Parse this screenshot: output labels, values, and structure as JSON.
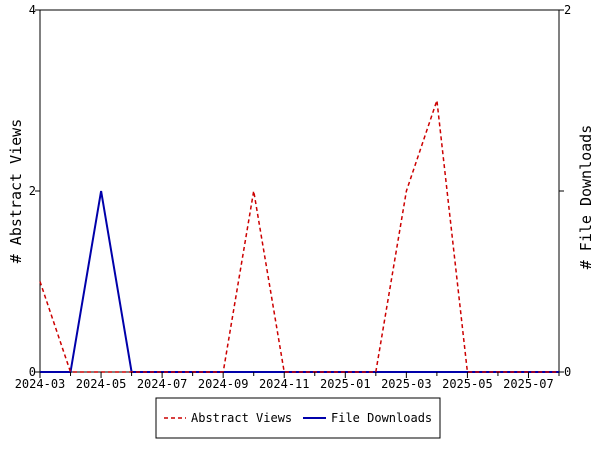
{
  "chart_data": {
    "type": "line",
    "x": [
      "2024-03",
      "2024-04",
      "2024-05",
      "2024-06",
      "2024-07",
      "2024-08",
      "2024-09",
      "2024-10",
      "2024-11",
      "2024-12",
      "2025-01",
      "2025-02",
      "2025-03",
      "2025-04",
      "2025-05",
      "2025-06",
      "2025-07",
      "2025-08"
    ],
    "x_tick_labels": [
      "2024-03",
      "2024-05",
      "2024-07",
      "2024-09",
      "2024-11",
      "2025-01",
      "2025-03",
      "2025-05",
      "2025-07"
    ],
    "series": [
      {
        "name": "Abstract Views",
        "axis": "left",
        "color": "#cc0000",
        "dash": true,
        "values": [
          1,
          0,
          0,
          0,
          0,
          0,
          0,
          2,
          0,
          0,
          0,
          0,
          2,
          3,
          0,
          0,
          0,
          0
        ]
      },
      {
        "name": "File Downloads",
        "axis": "right",
        "color": "#0000aa",
        "dash": false,
        "values": [
          0,
          0,
          1,
          0,
          0,
          0,
          0,
          0,
          0,
          0,
          0,
          0,
          0,
          0,
          0,
          0,
          0,
          0
        ]
      }
    ],
    "y_left": {
      "label": "# Abstract Views",
      "range": [
        0,
        4
      ],
      "ticks": [
        "0",
        "2",
        "4"
      ]
    },
    "y_right": {
      "label": "# File Downloads",
      "range": [
        0,
        2
      ],
      "ticks": [
        "0",
        "1",
        "2"
      ],
      "tick_labels_shown": [
        "0",
        "2"
      ]
    },
    "legend_position": "bottom",
    "grid": false
  }
}
